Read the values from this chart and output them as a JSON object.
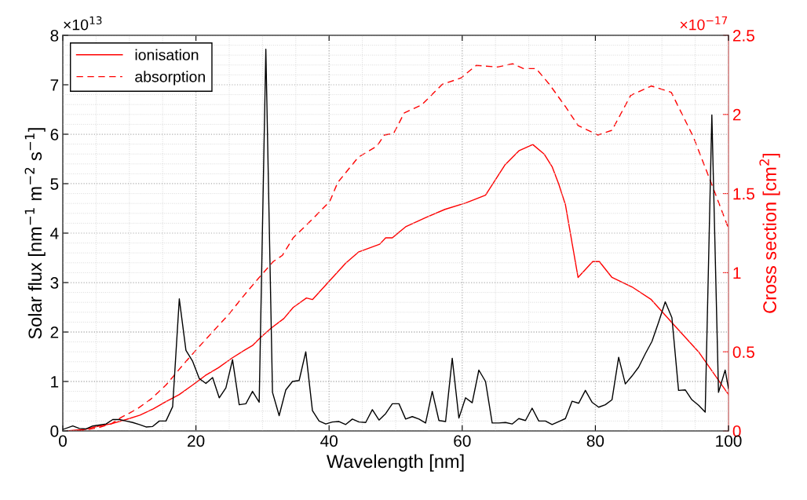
{
  "chart_data": {
    "type": "line",
    "xlabel": "Wavelength [nm]",
    "ylabel": "Solar flux [nm$^{−1}$ m$^{−2}$ s$^{−1}$]",
    "y2label": "Cross section [cm$^{2}$]",
    "annotations": [
      "×10$^{13}$",
      "×10$^{−17}$"
    ],
    "xlim": [
      0,
      100
    ],
    "xticks": [
      0,
      20,
      40,
      60,
      80,
      100
    ],
    "ylim": [
      0,
      8
    ],
    "yticks": [
      0,
      1,
      2,
      3,
      4,
      5,
      6,
      7,
      8
    ],
    "y2lim": [
      0,
      2.5
    ],
    "y2ticks": [
      0,
      0.5,
      1,
      1.5,
      2,
      2.5
    ],
    "grid": true,
    "legend": "top left",
    "marker": "none",
    "series": [
      {
        "color": "#000000",
        "line_style": "solid",
        "x": [
          0,
          1.5,
          2.5,
          3.5,
          4.5,
          5.5,
          6.5,
          7.5,
          8.5,
          9.5,
          10.5,
          11.5,
          12.5,
          13.5,
          14.5,
          15.5,
          16.5,
          17.5,
          18.5,
          19.5,
          20.5,
          21.5,
          22.5,
          23.5,
          24.5,
          25.5,
          26.5,
          27.5,
          28.5,
          29.5,
          30.5,
          31.5,
          32.5,
          33.5,
          34.5,
          35.5,
          36.5,
          37.5,
          38.5,
          39.5,
          40.5,
          41.5,
          42.5,
          43.5,
          44.5,
          45.5,
          46.5,
          47.5,
          48.5,
          49.5,
          50.5,
          51.5,
          52.5,
          53.5,
          54.5,
          55.5,
          56.5,
          57.5,
          58.5,
          59.5,
          60.5,
          61.5,
          62.5,
          63.5,
          64.5,
          65.5,
          66.5,
          67.5,
          68.5,
          69.5,
          70.5,
          71.5,
          72.5,
          73.5,
          74.5,
          75.5,
          76.5,
          77.5,
          78.5,
          79.5,
          80.5,
          81.5,
          82.5,
          83.5,
          84.5,
          85.5,
          86.5,
          87.5,
          88.5,
          89.5,
          90.5,
          91.5,
          92.5,
          93.5,
          94.5,
          95.5,
          96.5,
          97.5,
          98.5,
          99.5,
          100
        ],
        "values": [
          0.03,
          0.1,
          0.05,
          0.04,
          0.1,
          0.12,
          0.14,
          0.23,
          0.23,
          0.2,
          0.17,
          0.13,
          0.08,
          0.09,
          0.2,
          0.2,
          0.49,
          2.67,
          1.63,
          1.41,
          1.06,
          0.96,
          1.08,
          0.67,
          0.87,
          1.44,
          0.53,
          0.55,
          0.8,
          0.58,
          7.72,
          0.78,
          0.31,
          0.83,
          1.0,
          1.02,
          1.6,
          0.41,
          0.2,
          0.14,
          0.18,
          0.19,
          0.13,
          0.24,
          0.18,
          0.17,
          0.43,
          0.22,
          0.35,
          0.55,
          0.55,
          0.24,
          0.29,
          0.24,
          0.16,
          0.8,
          0.21,
          0.19,
          1.47,
          0.26,
          0.67,
          0.57,
          1.23,
          1.0,
          0.16,
          0.16,
          0.17,
          0.14,
          0.25,
          0.21,
          0.46,
          0.2,
          0.2,
          0.13,
          0.19,
          0.25,
          0.6,
          0.56,
          0.82,
          0.58,
          0.48,
          0.53,
          0.63,
          1.49,
          0.95,
          1.11,
          1.29,
          1.56,
          1.81,
          2.2,
          2.61,
          2.29,
          0.82,
          0.83,
          0.63,
          0.52,
          0.38,
          6.39,
          0.78,
          1.23,
          0.86
        ]
      },
      {
        "name": "ionisation",
        "color": "#ff0000",
        "axis": "y2",
        "line_style": "solid",
        "x": [
          0.6,
          3.3,
          5.3,
          7.3,
          9.6,
          11.6,
          13.6,
          15.5,
          17.5,
          19.5,
          21.4,
          23.4,
          25.4,
          27.3,
          28.5,
          29.7,
          31.3,
          33.2,
          34.6,
          36.6,
          37.5,
          40.1,
          42.5,
          44.4,
          47.6,
          48.5,
          49.5,
          51.5,
          54.6,
          57.4,
          60.5,
          63.5,
          66.4,
          68.5,
          70.6,
          72.3,
          73.5,
          74.5,
          75.5,
          77.4,
          79.6,
          80.6,
          82.5,
          85.5,
          88.4,
          91.6,
          95.5,
          100
        ],
        "values": [
          0.0,
          0.01,
          0.03,
          0.045,
          0.073,
          0.1,
          0.14,
          0.185,
          0.23,
          0.29,
          0.35,
          0.4,
          0.46,
          0.51,
          0.54,
          0.59,
          0.65,
          0.71,
          0.78,
          0.84,
          0.83,
          0.95,
          1.06,
          1.13,
          1.18,
          1.22,
          1.22,
          1.29,
          1.35,
          1.4,
          1.44,
          1.49,
          1.68,
          1.77,
          1.81,
          1.75,
          1.67,
          1.56,
          1.43,
          0.97,
          1.07,
          1.07,
          0.97,
          0.91,
          0.83,
          0.68,
          0.5,
          0.23
        ]
      },
      {
        "name": "absorption",
        "color": "#ff0000",
        "axis": "y2",
        "line_style": "dashed",
        "x": [
          0.6,
          3.3,
          5.3,
          7.3,
          8.8,
          11.2,
          13.2,
          15.5,
          17.9,
          20.2,
          22.6,
          25.0,
          26.9,
          29.3,
          31.6,
          33.0,
          34.6,
          37.3,
          40.1,
          41.3,
          44.4,
          47.2,
          48.3,
          49.7,
          51.3,
          53.9,
          57.0,
          59.8,
          62.1,
          65.3,
          67.6,
          69.2,
          71.1,
          73.1,
          75.5,
          77.4,
          80.4,
          82.5,
          85.3,
          88.4,
          91.4,
          94.7,
          97.1,
          100
        ],
        "values": [
          0.0,
          0.005,
          0.02,
          0.045,
          0.086,
          0.14,
          0.2,
          0.29,
          0.41,
          0.52,
          0.63,
          0.74,
          0.84,
          0.96,
          1.07,
          1.11,
          1.22,
          1.33,
          1.45,
          1.57,
          1.73,
          1.8,
          1.87,
          1.88,
          2.01,
          2.06,
          2.19,
          2.23,
          2.31,
          2.3,
          2.32,
          2.29,
          2.29,
          2.19,
          2.05,
          1.93,
          1.87,
          1.9,
          2.12,
          2.18,
          2.14,
          1.86,
          1.6,
          1.28
        ]
      }
    ]
  }
}
